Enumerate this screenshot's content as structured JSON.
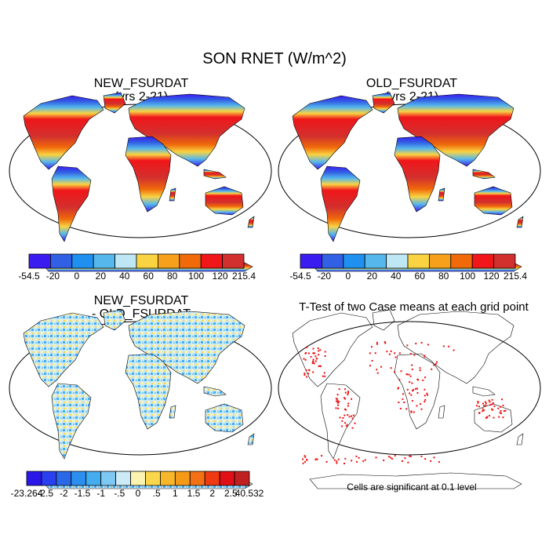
{
  "title": "SON RNET (W/m^2)",
  "panels": [
    {
      "id": "new",
      "title_line1": "NEW_FSURDAT",
      "title_line2": "(yrs 2-21)"
    },
    {
      "id": "old",
      "title_line1": "OLD_FSURDAT",
      "title_line2": "(yrs 2-21)"
    },
    {
      "id": "diff",
      "title_line1": "NEW_FSURDAT",
      "title_line2": "- OLD_FSURDAT"
    },
    {
      "id": "ttest",
      "title_line1": "T-Test of two Case means at each grid point",
      "title_line2": ""
    }
  ],
  "colorbars": {
    "rnet": {
      "colors": [
        "#3a1cf0",
        "#3160e4",
        "#1f8ff0",
        "#56b7ec",
        "#bfe6f5",
        "#f9d342",
        "#f7a01c",
        "#f06a0a",
        "#f0161a",
        "#d2302e"
      ],
      "labels": [
        "-54.5",
        "-20",
        "0",
        "20",
        "40",
        "60",
        "80",
        "100",
        "120",
        "215.4"
      ]
    },
    "diff": {
      "colors": [
        "#2a17e8",
        "#2a3ff0",
        "#2a68e8",
        "#2c8ff0",
        "#43adf0",
        "#7ec8f4",
        "#cdebf7",
        "#fbf3b0",
        "#f9d64a",
        "#f7b72a",
        "#f59a17",
        "#f37014",
        "#ef3a12",
        "#e01016",
        "#c02020"
      ],
      "labels": [
        "-23.264",
        "-2.5",
        "-2",
        "-1.5",
        "-1",
        "-.5",
        "0",
        ".5",
        "1",
        "1.5",
        "2",
        "2.5",
        "40.532"
      ]
    }
  },
  "note": "Cells are significant at 0.1 level"
}
